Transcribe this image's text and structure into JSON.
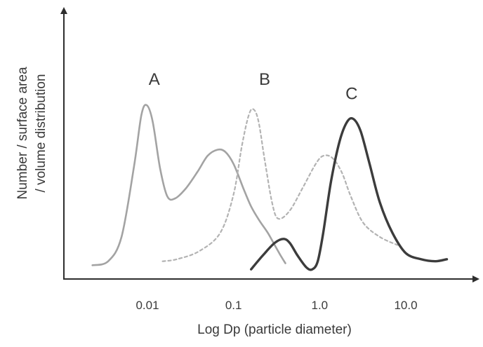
{
  "chart_data": {
    "type": "line",
    "title": "",
    "xlabel": "Log Dp (particle diameter)",
    "ylabel": [
      "Number / surface area",
      "/ volume distribution"
    ],
    "x_scale": "log",
    "x_ticks": [
      {
        "value": 0.01,
        "label": "0.01"
      },
      {
        "value": 0.1,
        "label": "0.1"
      },
      {
        "value": 1.0,
        "label": "1.0"
      },
      {
        "value": 10.0,
        "label": "10.0"
      }
    ],
    "xlim": [
      0.0017,
      60
    ],
    "ylim": [
      0,
      1
    ],
    "grid": false,
    "legend": "none",
    "series": [
      {
        "name": "A",
        "label_at": {
          "x": 0.012,
          "y": 0.93
        },
        "style": "solid",
        "color": "#a3a3a3",
        "points": [
          [
            0.0023,
            0.04
          ],
          [
            0.0035,
            0.06
          ],
          [
            0.005,
            0.18
          ],
          [
            0.007,
            0.53
          ],
          [
            0.0085,
            0.78
          ],
          [
            0.0098,
            0.83
          ],
          [
            0.0115,
            0.75
          ],
          [
            0.014,
            0.52
          ],
          [
            0.017,
            0.38
          ],
          [
            0.021,
            0.37
          ],
          [
            0.028,
            0.42
          ],
          [
            0.038,
            0.5
          ],
          [
            0.05,
            0.58
          ],
          [
            0.065,
            0.61
          ],
          [
            0.08,
            0.6
          ],
          [
            0.1,
            0.54
          ],
          [
            0.13,
            0.42
          ],
          [
            0.16,
            0.33
          ],
          [
            0.2,
            0.26
          ],
          [
            0.25,
            0.2
          ],
          [
            0.3,
            0.14
          ],
          [
            0.35,
            0.09
          ],
          [
            0.4,
            0.05
          ]
        ]
      },
      {
        "name": "B",
        "label_at": {
          "x": 0.23,
          "y": 0.93
        },
        "style": "dashed",
        "color": "#b3b3b3",
        "points": [
          [
            0.015,
            0.06
          ],
          [
            0.022,
            0.07
          ],
          [
            0.04,
            0.11
          ],
          [
            0.07,
            0.2
          ],
          [
            0.1,
            0.39
          ],
          [
            0.125,
            0.63
          ],
          [
            0.15,
            0.78
          ],
          [
            0.17,
            0.81
          ],
          [
            0.195,
            0.75
          ],
          [
            0.23,
            0.56
          ],
          [
            0.28,
            0.35
          ],
          [
            0.33,
            0.27
          ],
          [
            0.45,
            0.31
          ],
          [
            0.65,
            0.43
          ],
          [
            0.9,
            0.54
          ],
          [
            1.1,
            0.58
          ],
          [
            1.4,
            0.57
          ],
          [
            1.8,
            0.5
          ],
          [
            2.3,
            0.38
          ],
          [
            3.2,
            0.25
          ],
          [
            5.0,
            0.18
          ],
          [
            8.0,
            0.14
          ]
        ]
      },
      {
        "name": "C",
        "label_at": {
          "x": 2.35,
          "y": 0.86
        },
        "style": "solid",
        "color": "#3c3c3c",
        "points": [
          [
            0.16,
            0.02
          ],
          [
            0.22,
            0.09
          ],
          [
            0.3,
            0.15
          ],
          [
            0.38,
            0.17
          ],
          [
            0.45,
            0.15
          ],
          [
            0.55,
            0.09
          ],
          [
            0.7,
            0.03
          ],
          [
            0.82,
            0.02
          ],
          [
            0.95,
            0.06
          ],
          [
            1.1,
            0.2
          ],
          [
            1.35,
            0.45
          ],
          [
            1.7,
            0.65
          ],
          [
            2.1,
            0.75
          ],
          [
            2.5,
            0.76
          ],
          [
            3.0,
            0.7
          ],
          [
            3.8,
            0.54
          ],
          [
            5.0,
            0.35
          ],
          [
            7.0,
            0.2
          ],
          [
            10.0,
            0.1
          ],
          [
            15.0,
            0.07
          ],
          [
            22.0,
            0.06
          ],
          [
            30.0,
            0.07
          ]
        ]
      }
    ]
  }
}
